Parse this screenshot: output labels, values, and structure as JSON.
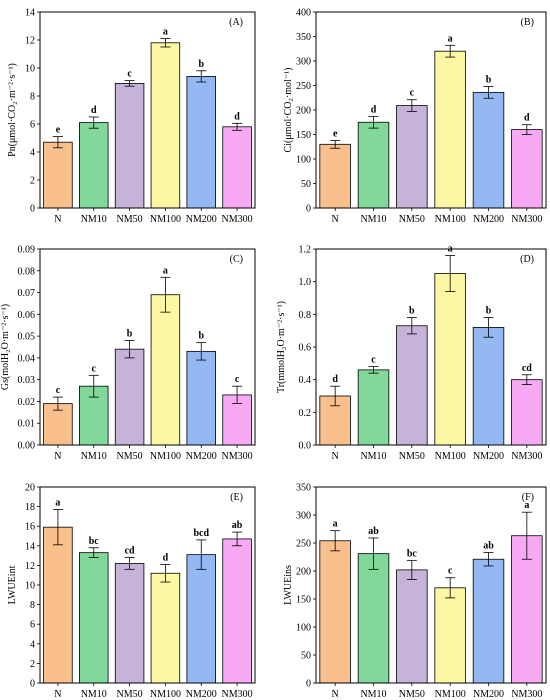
{
  "chart_data": [
    {
      "type": "bar",
      "panel": "(A)",
      "ylabel": "Pn(μmol·CO₂·m⁻²·s⁻¹)",
      "ylim": [
        0,
        14
      ],
      "yticks": [
        "0",
        "2",
        "4",
        "6",
        "8",
        "10",
        "12",
        "14"
      ],
      "categories": [
        "N",
        "NM10",
        "NM50",
        "NM100",
        "NM200",
        "NM300"
      ],
      "values": [
        4.7,
        6.1,
        8.9,
        11.8,
        9.4,
        5.8
      ],
      "errors": [
        0.4,
        0.4,
        0.2,
        0.3,
        0.4,
        0.25
      ],
      "letters": [
        "e",
        "d",
        "c",
        "a",
        "b",
        "d"
      ]
    },
    {
      "type": "bar",
      "panel": "(B)",
      "ylabel": "Ci(μmol·CO₂·mol⁻¹)",
      "ylim": [
        0,
        400
      ],
      "yticks": [
        "0",
        "50",
        "100",
        "150",
        "200",
        "250",
        "300",
        "350",
        "400"
      ],
      "categories": [
        "N",
        "NM10",
        "NM50",
        "NM100",
        "NM200",
        "NM300"
      ],
      "values": [
        130,
        175,
        209,
        320,
        236,
        160
      ],
      "errors": [
        8,
        12,
        12,
        12,
        12,
        10
      ],
      "letters": [
        "e",
        "d",
        "c",
        "a",
        "b",
        "d"
      ]
    },
    {
      "type": "bar",
      "panel": "(C)",
      "ylabel": "Gs(molH₂O·m⁻²·s⁻¹)",
      "ylim": [
        0,
        0.09
      ],
      "yticks": [
        "0.00",
        "0.01",
        "0.02",
        "0.03",
        "0.04",
        "0.05",
        "0.06",
        "0.07",
        "0.08",
        "0.09"
      ],
      "categories": [
        "N",
        "NM10",
        "NM50",
        "NM100",
        "NM200",
        "NM300"
      ],
      "values": [
        0.019,
        0.027,
        0.044,
        0.069,
        0.043,
        0.023
      ],
      "errors": [
        0.003,
        0.005,
        0.004,
        0.008,
        0.004,
        0.004
      ],
      "letters": [
        "c",
        "c",
        "b",
        "a",
        "b",
        "c"
      ]
    },
    {
      "type": "bar",
      "panel": "(D)",
      "ylabel": "Tr(mmolH₂O·m⁻²·s⁻¹)",
      "ylim": [
        0,
        1.2
      ],
      "yticks": [
        "0.0",
        "0.2",
        "0.4",
        "0.6",
        "0.8",
        "1.0",
        "1.2"
      ],
      "categories": [
        "N",
        "NM10",
        "NM50",
        "NM100",
        "NM200",
        "NM300"
      ],
      "values": [
        0.3,
        0.46,
        0.73,
        1.05,
        0.72,
        0.4
      ],
      "errors": [
        0.06,
        0.02,
        0.05,
        0.11,
        0.06,
        0.03
      ],
      "letters": [
        "d",
        "c",
        "b",
        "a",
        "b",
        "cd"
      ]
    },
    {
      "type": "bar",
      "panel": "(E)",
      "ylabel": "LWUEint",
      "ylim": [
        0,
        20
      ],
      "yticks": [
        "0",
        "2",
        "4",
        "6",
        "8",
        "10",
        "12",
        "14",
        "16",
        "18",
        "20"
      ],
      "categories": [
        "N",
        "NM10",
        "NM50",
        "NM100",
        "NM200",
        "NM300"
      ],
      "values": [
        15.9,
        13.3,
        12.2,
        11.2,
        13.1,
        14.7
      ],
      "errors": [
        1.8,
        0.5,
        0.6,
        0.9,
        1.5,
        0.7
      ],
      "letters": [
        "a",
        "bc",
        "cd",
        "d",
        "bcd",
        "ab"
      ]
    },
    {
      "type": "bar",
      "panel": "(F)",
      "ylabel": "LWUEins",
      "ylim": [
        0,
        350
      ],
      "yticks": [
        "0",
        "50",
        "100",
        "150",
        "200",
        "250",
        "300",
        "350"
      ],
      "categories": [
        "N",
        "NM10",
        "NM50",
        "NM100",
        "NM200",
        "NM300"
      ],
      "values": [
        254,
        231,
        202,
        170,
        221,
        263
      ],
      "errors": [
        18,
        28,
        17,
        18,
        12,
        42
      ],
      "letters": [
        "a",
        "ab",
        "bc",
        "c",
        "ab",
        "a"
      ]
    }
  ],
  "colors": {
    "bars": [
      "#f9c08e",
      "#82d89a",
      "#c8b3d8",
      "#fbf7a3",
      "#94b8f2",
      "#f7aaf3"
    ],
    "outline": "#000000"
  }
}
